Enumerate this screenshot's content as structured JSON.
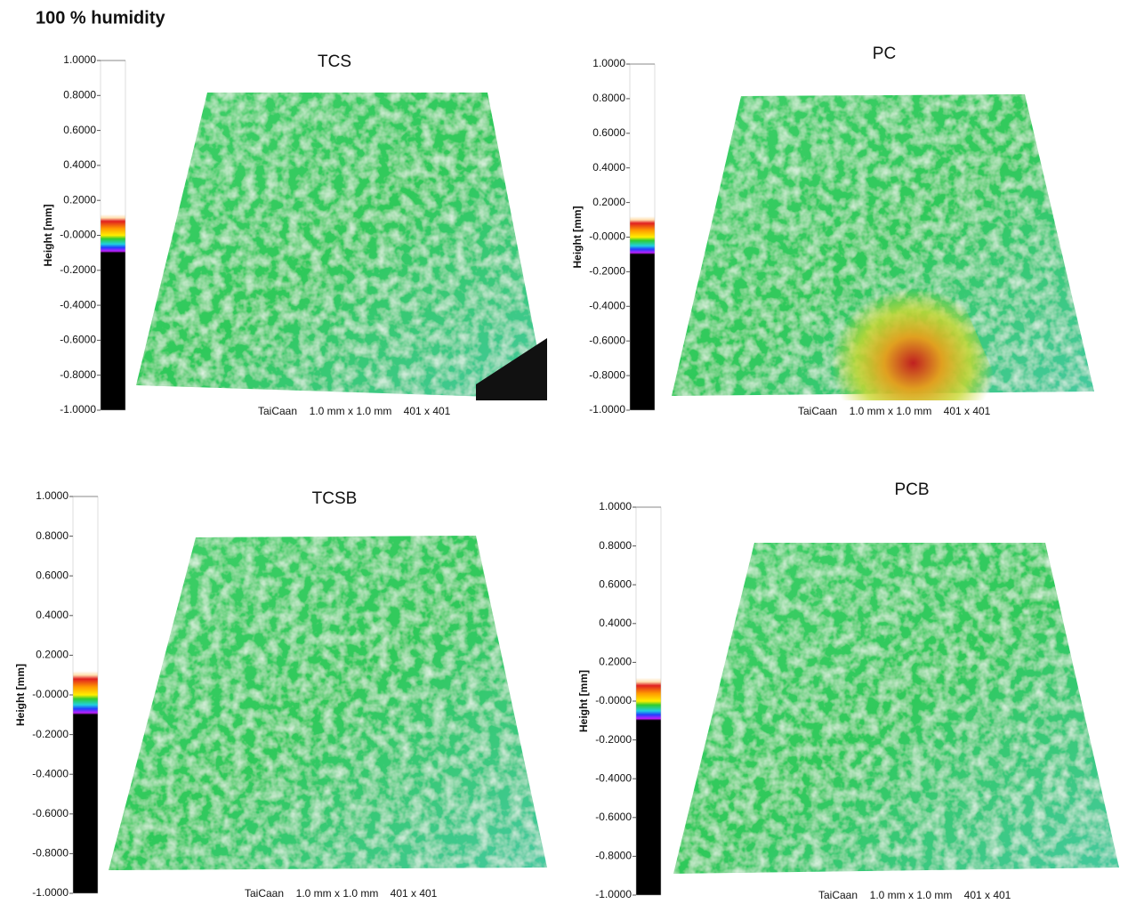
{
  "title": "100 % humidity",
  "panels": [
    {
      "title": "TCS",
      "axis_label": "Height [mm]",
      "ticks": [
        "1.0000",
        "0.8000",
        "0.6000",
        "0.4000",
        "0.2000",
        "-0.0000",
        "-0.2000",
        "-0.4000",
        "-0.6000",
        "-0.8000",
        "-1.0000"
      ],
      "caption": [
        "TaiCaan",
        "1.0 mm x 1.0 mm",
        "401 x 401"
      ]
    },
    {
      "title": "PC",
      "axis_label": "Height [mm]",
      "ticks": [
        "1.0000",
        "0.8000",
        "0.6000",
        "0.4000",
        "0.2000",
        "-0.0000",
        "-0.2000",
        "-0.4000",
        "-0.6000",
        "-0.8000",
        "-1.0000"
      ],
      "caption": [
        "TaiCaan",
        "1.0 mm x 1.0 mm",
        "401 x 401"
      ]
    },
    {
      "title": "TCSB",
      "axis_label": "Height [mm]",
      "ticks": [
        "1.0000",
        "0.8000",
        "0.6000",
        "0.4000",
        "0.2000",
        "-0.0000",
        "-0.2000",
        "-0.4000",
        "-0.6000",
        "-0.8000",
        "-1.0000"
      ],
      "caption": [
        "TaiCaan",
        "1.0 mm x 1.0 mm",
        "401 x 401"
      ]
    },
    {
      "title": "PCB",
      "axis_label": "Height [mm]",
      "ticks": [
        "1.0000",
        "0.8000",
        "0.6000",
        "0.4000",
        "0.2000",
        "-0.0000",
        "-0.2000",
        "-0.4000",
        "-0.6000",
        "-0.8000",
        "-1.0000"
      ],
      "caption": [
        "TaiCaan",
        "1.0 mm x 1.0 mm",
        "401 x 401"
      ]
    }
  ]
}
